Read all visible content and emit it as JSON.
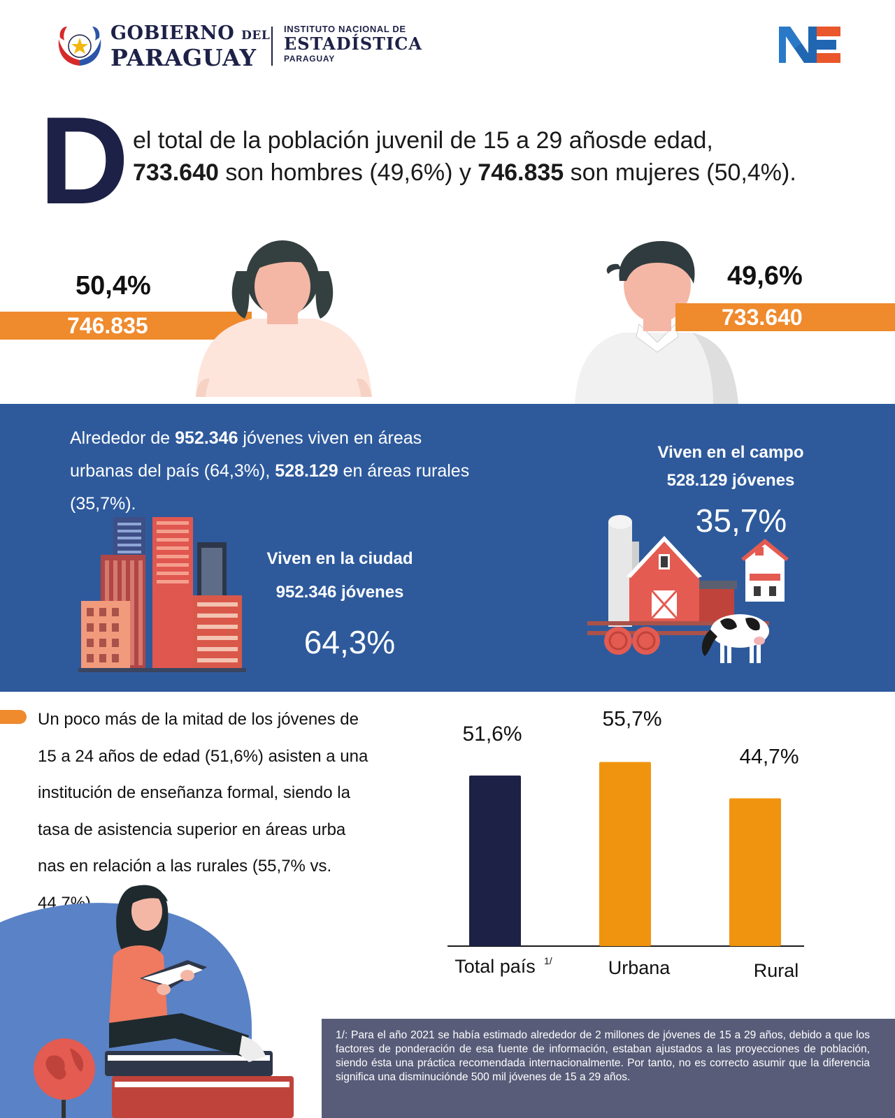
{
  "header": {
    "gob_line1": "GOBIERNO",
    "gob_del": "DEL",
    "gob_line2": "PARAGUAY",
    "ine_line1": "INSTITUTO NACIONAL DE",
    "ine_line2": "ESTADÍSTICA",
    "ine_line3": "PARAGUAY",
    "logo_icon": "ine-logo-icon",
    "seal_icon": "paraguay-seal-icon"
  },
  "intro": {
    "dropcap": "D",
    "line1": "el total de la población juvenil de 15 a 29 añosde edad,",
    "men_count": "733.640",
    "mid1": " son hombres (49,6%) y ",
    "women_count": "746.835",
    "mid2": " son mujeres (50,4%)."
  },
  "gender": {
    "women_pct": "50,4%",
    "women_count": "746.835",
    "men_pct": "49,6%",
    "men_count": "733.640"
  },
  "residence": {
    "text_pre": "Alrededor de ",
    "urban_count": "952.346",
    "text_mid1": " jóvenes viven en áreas urbanas del país (64,3%), ",
    "rural_count": "528.129",
    "text_mid2": " en áreas rurales (35,7%).",
    "city_title": "Viven en la ciudad",
    "city_count": "952.346 jóvenes",
    "city_pct": "64,3%",
    "camp_title": "Viven en el campo",
    "camp_count": "528.129 jóvenes",
    "camp_pct": "35,7%"
  },
  "education": {
    "lines": [
      "Un poco más de la mitad de los jóvenes de",
      "15 a 24 años de edad (51,6%) asisten a una",
      "institución de enseñanza formal, siendo la",
      "tasa de asistencia superior en áreas urba",
      "nas en relación a las rurales (55,7% vs.",
      "44,7%)."
    ]
  },
  "chart_data": {
    "type": "bar",
    "categories": [
      "Total país",
      "Urbana",
      "Rural"
    ],
    "category_superscripts": [
      "1/",
      "",
      ""
    ],
    "values": [
      51.6,
      55.7,
      44.7
    ],
    "value_labels": [
      "51,6%",
      "55,7%",
      "44,7%"
    ],
    "colors": [
      "#1e2146",
      "#f0940f",
      "#f0940f"
    ],
    "ylim": [
      0,
      60
    ],
    "grid": false
  },
  "footnote": {
    "text": "1/: Para el año 2021 se había estimado alrededor de 2 millones de jóvenes de 15 a 29 años, debido a que los factores de ponderación de esa fuente de información, estaban ajustados a las proyecciones de población, siendo ésta una práctica recomendada internacionalmente. Por tanto, no es correcto asumir que la diferencia significa una disminuciónde 500 mil jóvenes de 15 a 29 años."
  },
  "colors": {
    "navy": "#1d2147",
    "orange": "#ef8a2d",
    "blue_band": "#2e5a9c",
    "footnote_bg": "#585c78"
  }
}
